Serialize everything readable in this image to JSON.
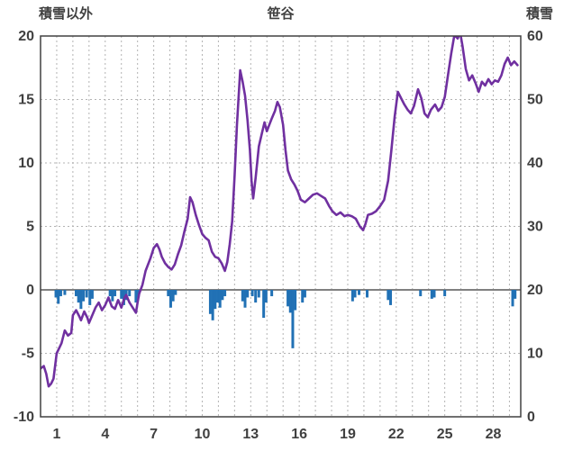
{
  "chart_data": {
    "type": "line",
    "title": "笹谷",
    "left_axis": {
      "label": "積雪以外",
      "min": -10,
      "max": 20,
      "ticks": [
        -10,
        -5,
        0,
        5,
        10,
        15,
        20
      ]
    },
    "right_axis": {
      "label": "積雪",
      "min": 0,
      "max": 60,
      "ticks": [
        0,
        10,
        20,
        30,
        40,
        50,
        60
      ]
    },
    "x_axis": {
      "min": 0,
      "max": 29.7,
      "tick_labels": [
        1,
        4,
        7,
        10,
        13,
        16,
        19,
        22,
        25,
        28
      ],
      "grid_step": 1
    },
    "grid_on": true,
    "legend": "none",
    "line_color": "#7030A0",
    "bar_color": "#2171B5",
    "zero_line_color": "#808080",
    "grid_color": "#B3B3B3",
    "frame_color": "#404040",
    "text_color": "#404040",
    "series": [
      {
        "name": "temperature-line",
        "type": "line",
        "axis": "left",
        "points": [
          [
            0.0,
            -6.2
          ],
          [
            0.2,
            -6.0
          ],
          [
            0.35,
            -6.6
          ],
          [
            0.5,
            -7.6
          ],
          [
            0.65,
            -7.4
          ],
          [
            0.8,
            -7.0
          ],
          [
            1.0,
            -5.0
          ],
          [
            1.15,
            -4.6
          ],
          [
            1.3,
            -4.2
          ],
          [
            1.5,
            -3.2
          ],
          [
            1.7,
            -3.6
          ],
          [
            1.9,
            -3.4
          ],
          [
            2.0,
            -2.0
          ],
          [
            2.2,
            -1.6
          ],
          [
            2.4,
            -2.1
          ],
          [
            2.5,
            -2.4
          ],
          [
            2.7,
            -1.7
          ],
          [
            2.9,
            -2.2
          ],
          [
            3.0,
            -2.6
          ],
          [
            3.2,
            -2.0
          ],
          [
            3.4,
            -1.4
          ],
          [
            3.6,
            -1.0
          ],
          [
            3.8,
            -1.6
          ],
          [
            4.0,
            -1.2
          ],
          [
            4.2,
            -0.6
          ],
          [
            4.4,
            -1.3
          ],
          [
            4.6,
            -1.5
          ],
          [
            4.8,
            -0.8
          ],
          [
            5.0,
            -1.4
          ],
          [
            5.2,
            -0.6
          ],
          [
            5.3,
            -0.4
          ],
          [
            5.5,
            -1.0
          ],
          [
            5.7,
            -1.4
          ],
          [
            5.9,
            -1.8
          ],
          [
            6.0,
            -1.0
          ],
          [
            6.1,
            -0.3
          ],
          [
            6.3,
            0.4
          ],
          [
            6.5,
            1.5
          ],
          [
            6.8,
            2.5
          ],
          [
            7.0,
            3.3
          ],
          [
            7.2,
            3.6
          ],
          [
            7.35,
            3.2
          ],
          [
            7.5,
            2.6
          ],
          [
            7.7,
            2.1
          ],
          [
            7.9,
            1.8
          ],
          [
            8.1,
            1.6
          ],
          [
            8.3,
            2.0
          ],
          [
            8.5,
            2.8
          ],
          [
            8.7,
            3.5
          ],
          [
            8.9,
            4.6
          ],
          [
            9.1,
            5.6
          ],
          [
            9.25,
            7.3
          ],
          [
            9.4,
            6.9
          ],
          [
            9.6,
            5.9
          ],
          [
            9.8,
            5.1
          ],
          [
            10.0,
            4.4
          ],
          [
            10.2,
            4.1
          ],
          [
            10.4,
            3.9
          ],
          [
            10.6,
            3.0
          ],
          [
            10.8,
            2.6
          ],
          [
            11.0,
            2.5
          ],
          [
            11.2,
            2.1
          ],
          [
            11.4,
            1.5
          ],
          [
            11.55,
            2.2
          ],
          [
            11.7,
            3.6
          ],
          [
            11.85,
            5.4
          ],
          [
            12.0,
            9.0
          ],
          [
            12.15,
            13.0
          ],
          [
            12.35,
            17.3
          ],
          [
            12.5,
            16.4
          ],
          [
            12.65,
            15.3
          ],
          [
            12.8,
            13.4
          ],
          [
            12.95,
            11.0
          ],
          [
            13.05,
            8.6
          ],
          [
            13.15,
            7.2
          ],
          [
            13.3,
            8.8
          ],
          [
            13.5,
            11.3
          ],
          [
            13.7,
            12.4
          ],
          [
            13.85,
            13.2
          ],
          [
            14.0,
            12.5
          ],
          [
            14.15,
            13.0
          ],
          [
            14.3,
            13.5
          ],
          [
            14.5,
            14.1
          ],
          [
            14.65,
            14.8
          ],
          [
            14.8,
            14.4
          ],
          [
            15.0,
            13.0
          ],
          [
            15.15,
            11.0
          ],
          [
            15.3,
            9.4
          ],
          [
            15.5,
            8.7
          ],
          [
            15.7,
            8.3
          ],
          [
            15.9,
            7.8
          ],
          [
            16.1,
            7.1
          ],
          [
            16.35,
            6.9
          ],
          [
            16.6,
            7.2
          ],
          [
            16.85,
            7.5
          ],
          [
            17.1,
            7.6
          ],
          [
            17.35,
            7.4
          ],
          [
            17.6,
            7.2
          ],
          [
            17.85,
            6.6
          ],
          [
            18.05,
            6.2
          ],
          [
            18.3,
            5.9
          ],
          [
            18.55,
            6.1
          ],
          [
            18.8,
            5.8
          ],
          [
            19.0,
            5.9
          ],
          [
            19.25,
            5.8
          ],
          [
            19.5,
            5.6
          ],
          [
            19.75,
            5.0
          ],
          [
            19.95,
            4.7
          ],
          [
            20.1,
            5.2
          ],
          [
            20.25,
            5.9
          ],
          [
            20.5,
            6.0
          ],
          [
            20.75,
            6.2
          ],
          [
            21.0,
            6.6
          ],
          [
            21.25,
            7.1
          ],
          [
            21.5,
            8.6
          ],
          [
            21.7,
            11.0
          ],
          [
            21.9,
            13.6
          ],
          [
            22.1,
            15.6
          ],
          [
            22.3,
            15.1
          ],
          [
            22.5,
            14.6
          ],
          [
            22.7,
            14.2
          ],
          [
            22.9,
            13.9
          ],
          [
            23.1,
            14.5
          ],
          [
            23.35,
            15.8
          ],
          [
            23.55,
            15.1
          ],
          [
            23.75,
            13.9
          ],
          [
            23.95,
            13.6
          ],
          [
            24.15,
            14.2
          ],
          [
            24.4,
            14.6
          ],
          [
            24.6,
            14.1
          ],
          [
            24.8,
            14.4
          ],
          [
            25.0,
            15.2
          ],
          [
            25.2,
            16.9
          ],
          [
            25.4,
            18.6
          ],
          [
            25.6,
            20.1
          ],
          [
            25.8,
            19.8
          ],
          [
            25.95,
            20.3
          ],
          [
            26.1,
            19.2
          ],
          [
            26.3,
            17.4
          ],
          [
            26.5,
            16.5
          ],
          [
            26.7,
            16.9
          ],
          [
            26.9,
            16.3
          ],
          [
            27.1,
            15.6
          ],
          [
            27.3,
            16.4
          ],
          [
            27.5,
            16.1
          ],
          [
            27.7,
            16.6
          ],
          [
            27.9,
            16.2
          ],
          [
            28.1,
            16.5
          ],
          [
            28.3,
            16.4
          ],
          [
            28.5,
            16.9
          ],
          [
            28.7,
            17.8
          ],
          [
            28.9,
            18.3
          ],
          [
            29.1,
            17.7
          ],
          [
            29.3,
            18.0
          ],
          [
            29.5,
            17.7
          ]
        ]
      },
      {
        "name": "precipitation-bars",
        "type": "bar",
        "axis": "left",
        "baseline": 0,
        "points": [
          [
            0.95,
            -0.6
          ],
          [
            1.1,
            -1.1
          ],
          [
            1.25,
            -0.5
          ],
          [
            1.5,
            -0.4
          ],
          [
            2.2,
            -0.5
          ],
          [
            2.35,
            -1.0
          ],
          [
            2.5,
            -1.5
          ],
          [
            2.65,
            -0.9
          ],
          [
            2.85,
            -0.6
          ],
          [
            3.05,
            -1.2
          ],
          [
            3.2,
            -0.7
          ],
          [
            4.3,
            -0.5
          ],
          [
            4.45,
            -0.9
          ],
          [
            4.6,
            -0.5
          ],
          [
            5.0,
            -0.7
          ],
          [
            5.15,
            -1.2
          ],
          [
            5.3,
            -0.8
          ],
          [
            5.5,
            -0.5
          ],
          [
            5.9,
            -1.0
          ],
          [
            6.05,
            -0.6
          ],
          [
            7.9,
            -0.5
          ],
          [
            8.05,
            -1.4
          ],
          [
            8.2,
            -0.9
          ],
          [
            8.35,
            -0.4
          ],
          [
            10.5,
            -1.9
          ],
          [
            10.65,
            -2.4
          ],
          [
            10.8,
            -1.5
          ],
          [
            10.95,
            -1.0
          ],
          [
            11.1,
            -1.4
          ],
          [
            11.25,
            -0.8
          ],
          [
            11.4,
            -0.5
          ],
          [
            12.5,
            -0.9
          ],
          [
            12.65,
            -1.4
          ],
          [
            12.8,
            -0.6
          ],
          [
            13.1,
            -0.5
          ],
          [
            13.3,
            -1.0
          ],
          [
            13.5,
            -0.6
          ],
          [
            13.8,
            -2.2
          ],
          [
            13.95,
            -1.0
          ],
          [
            14.3,
            -0.5
          ],
          [
            15.3,
            -1.3
          ],
          [
            15.45,
            -1.8
          ],
          [
            15.6,
            -4.6
          ],
          [
            15.75,
            -1.6
          ],
          [
            16.2,
            -1.0
          ],
          [
            16.35,
            -0.6
          ],
          [
            19.3,
            -0.9
          ],
          [
            19.45,
            -0.6
          ],
          [
            19.7,
            -0.4
          ],
          [
            20.2,
            -0.6
          ],
          [
            21.5,
            -0.8
          ],
          [
            21.65,
            -1.2
          ],
          [
            23.5,
            -0.5
          ],
          [
            24.2,
            -0.7
          ],
          [
            24.35,
            -0.6
          ],
          [
            25.0,
            -0.5
          ],
          [
            29.2,
            -1.3
          ],
          [
            29.35,
            -0.7
          ]
        ]
      }
    ]
  }
}
